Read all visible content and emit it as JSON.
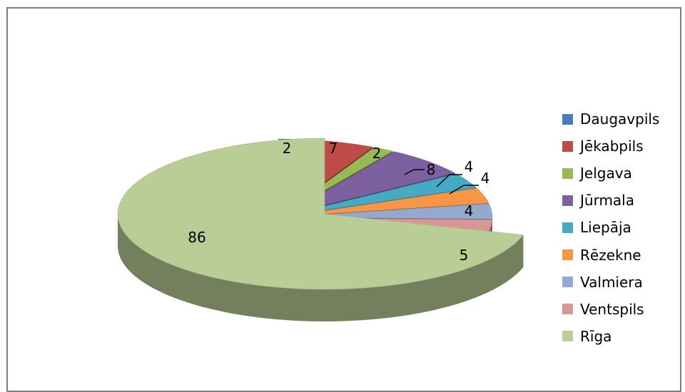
{
  "chart_data": {
    "type": "pie",
    "title": "",
    "categories": [
      "Daugavpils",
      "Jēkabpils",
      "Jelgava",
      "Jūrmala",
      "Liepāja",
      "Rēzekne",
      "Valmiera",
      "Ventspils",
      "Rīga"
    ],
    "values": [
      2,
      7,
      2,
      8,
      4,
      4,
      4,
      5,
      86
    ],
    "labels": [
      "2",
      "7",
      "2",
      "8",
      "4",
      "4",
      "4",
      "5",
      "86"
    ],
    "colors": [
      "#4a7ebb",
      "#be4b48",
      "#98b954",
      "#7d60a0",
      "#46aac5",
      "#f79646",
      "#93a9cf",
      "#d99694",
      "#b9cd96"
    ],
    "style": "3d-exploded",
    "legend_position": "right"
  }
}
